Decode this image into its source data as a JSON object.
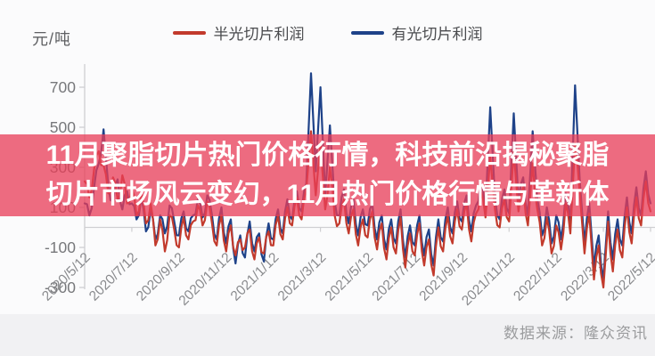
{
  "chart": {
    "unit_label": "元/吨",
    "source_label": "数据来源：隆众资讯"
  },
  "overlay": {
    "line1": "11月聚脂切片热门价格行情，科技前沿揭秘聚脂",
    "line2": "切片市场风云变幻，11月热门价格行情与革新体",
    "band_color": "rgba(232,62,88,0.76)",
    "text_color": "#ffffff"
  },
  "legend": {
    "items": [
      {
        "label": "半光切片利润",
        "color": "#c23a2c"
      },
      {
        "label": "有光切片利润",
        "color": "#1e4289"
      }
    ]
  },
  "colors": {
    "axis": "#cfcfd2",
    "tick_text": "#77787b",
    "x_tick_text": "#8a8b8e"
  },
  "chart_data": {
    "type": "line",
    "title": "",
    "ylabel": "元/吨",
    "grid": false,
    "legend_position": "top",
    "ylim": [
      -350,
      820
    ],
    "y_ticks": [
      700,
      500,
      300,
      100,
      -100,
      -300
    ],
    "x_tick_labels": [
      "2020/5/12",
      "2020/7/12",
      "2020/9/12",
      "2020/11/12",
      "2021/1/12",
      "2021/3/12",
      "2021/5/12",
      "2021/7/12",
      "2021/9/12",
      "2021/11/12",
      "2022/1/12",
      "2022/3/12",
      "2022/5/12"
    ],
    "series": [
      {
        "name": "有光切片利润",
        "color": "#1e4289",
        "values": [
          120,
          60,
          200,
          320,
          490,
          210,
          130,
          240,
          90,
          180,
          120,
          40,
          150,
          -20,
          90,
          -60,
          60,
          -30,
          110,
          30,
          -40,
          80,
          -20,
          60,
          140,
          50,
          160,
          60,
          -60,
          100,
          -80,
          40,
          -180,
          -40,
          -150,
          30,
          -120,
          -30,
          -170,
          20,
          -60,
          90,
          -30,
          140,
          40,
          180,
          80,
          220,
          770,
          280,
          700,
          160,
          510,
          130,
          60,
          190,
          20,
          140,
          -40,
          90,
          10,
          120,
          -60,
          60,
          -110,
          40,
          -80,
          90,
          -150,
          10,
          -90,
          60,
          -140,
          -10,
          -190,
          40,
          -70,
          100,
          -30,
          130,
          30,
          160,
          -20,
          110,
          220,
          90,
          600,
          150,
          40,
          190,
          70,
          570,
          130,
          250,
          60,
          480,
          140,
          -40,
          100,
          -80,
          60,
          -60,
          170,
          20,
          710,
          230,
          -80,
          120,
          -200,
          -40,
          -260,
          80,
          -160,
          40,
          -90,
          150,
          -30,
          200,
          60,
          280,
          120
        ]
      },
      {
        "name": "半光切片利润",
        "color": "#c23a2c",
        "values": [
          230,
          150,
          290,
          380,
          310,
          170,
          250,
          140,
          260,
          120,
          200,
          60,
          170,
          20,
          120,
          -90,
          40,
          -120,
          60,
          -10,
          -100,
          50,
          -60,
          30,
          110,
          10,
          130,
          20,
          -90,
          60,
          -120,
          10,
          -140,
          -60,
          -100,
          -10,
          -160,
          -50,
          -130,
          -20,
          -90,
          60,
          -60,
          100,
          10,
          150,
          40,
          190,
          480,
          160,
          420,
          90,
          300,
          60,
          20,
          140,
          -30,
          90,
          -90,
          40,
          -50,
          80,
          -110,
          20,
          -160,
          0,
          -130,
          50,
          -200,
          -30,
          -140,
          20,
          -190,
          -60,
          -240,
          0,
          -120,
          60,
          -80,
          90,
          -10,
          120,
          -70,
          70,
          180,
          50,
          350,
          90,
          0,
          140,
          30,
          380,
          80,
          200,
          10,
          320,
          90,
          -90,
          50,
          -130,
          10,
          -110,
          120,
          -30,
          420,
          170,
          -130,
          70,
          -260,
          -90,
          -300,
          30,
          -220,
          -10,
          -150,
          100,
          -80,
          150,
          10,
          230,
          80
        ]
      }
    ]
  }
}
